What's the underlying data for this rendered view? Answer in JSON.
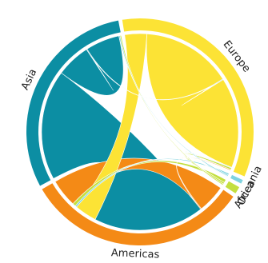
{
  "chart_data": {
    "type": "chord",
    "title": "",
    "regions": [
      {
        "name": "Europe",
        "color": "#FCE335"
      },
      {
        "name": "Oceania",
        "color": "#7FD3E0"
      },
      {
        "name": "Africa",
        "color": "#C4DF3F"
      },
      {
        "name": "Americas",
        "color": "#F48A16"
      },
      {
        "name": "Asia",
        "color": "#0C8EA3"
      }
    ],
    "flows": [
      {
        "from": "Asia",
        "to": "Americas",
        "value": 55
      },
      {
        "from": "Asia",
        "to": "Asia",
        "value": 17
      },
      {
        "from": "Asia",
        "to": "Europe",
        "value": 0.3
      },
      {
        "from": "Europe",
        "to": "Americas",
        "value": 11
      },
      {
        "from": "Europe",
        "to": "Europe",
        "value": 45
      },
      {
        "from": "Oceania",
        "to": "Americas",
        "value": 0.8
      },
      {
        "from": "Oceania",
        "to": "Asia",
        "value": 0.6
      },
      {
        "from": "Oceania",
        "to": "Europe",
        "value": 0.3
      },
      {
        "from": "Africa",
        "to": "Americas",
        "value": 1.6
      },
      {
        "from": "Africa",
        "to": "Europe",
        "value": 0.9
      },
      {
        "from": "Africa",
        "to": "Asia",
        "value": 0.6
      },
      {
        "from": "Americas",
        "to": "Americas",
        "value": 14
      },
      {
        "from": "Americas",
        "to": "Europe",
        "value": 0.4
      }
    ]
  }
}
